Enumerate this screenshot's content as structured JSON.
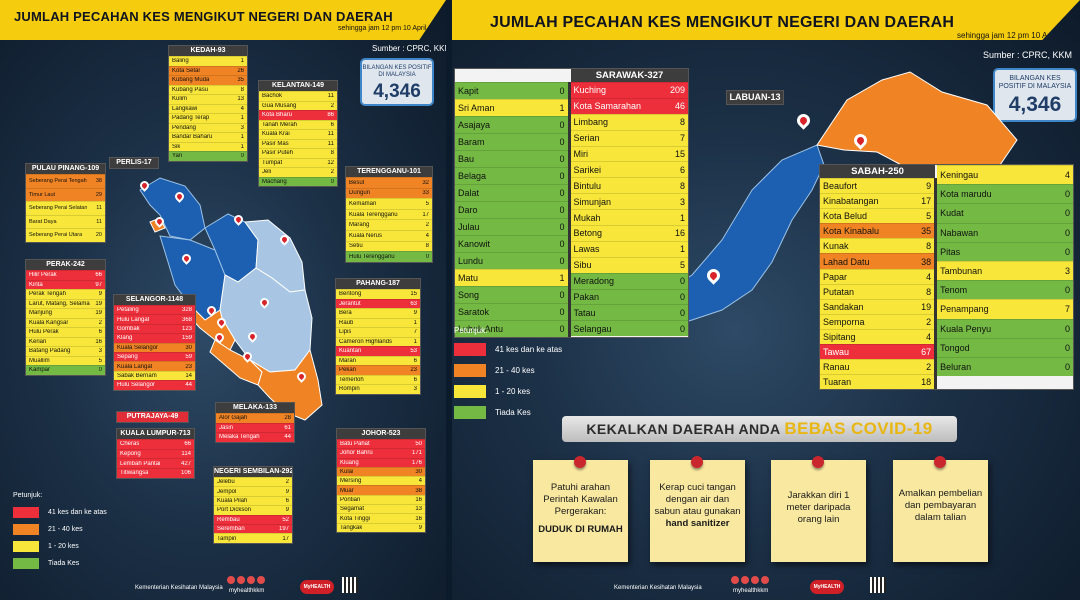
{
  "left": {
    "title": "JUMLAH PECAHAN KES MENGIKUT NEGERI DAN DAERAH",
    "subtitle": "sehingga jam 12 pm 10 April 2020",
    "source": "Sumber : CPRC, KKM",
    "total_label": "BILANGAN KES POSITIF DI MALAYSIA",
    "total": "4,346",
    "legend_title": "Petunjuk:",
    "legend": [
      "41 kes dan ke atas",
      "21 - 40 kes",
      "1 - 20 kes",
      "Tiada Kes"
    ],
    "footer": "Kementerian Kesihatan Malaysia",
    "handle": "myhealthkkm",
    "logo": "MyHEALTH",
    "colors": {
      "red": "#ed2f3b",
      "orange": "#f08324",
      "yellow": "#f8e73a",
      "green": "#73b944",
      "header": "#f6cc0e"
    },
    "states": {
      "kedah": {
        "title": "KEDAH-93",
        "rows": [
          [
            "Baling",
            "1",
            "y"
          ],
          [
            "Kota Setar",
            "26",
            "o"
          ],
          [
            "Kubang Muda",
            "35",
            "o"
          ],
          [
            "Kubang Pasu",
            "8",
            "y"
          ],
          [
            "Kulim",
            "13",
            "y"
          ],
          [
            "Langkawi",
            "4",
            "y"
          ],
          [
            "Padang Terap",
            "1",
            "y"
          ],
          [
            "Pendang",
            "3",
            "y"
          ],
          [
            "Bandar Baharu",
            "1",
            "y"
          ],
          [
            "Sik",
            "1",
            "y"
          ],
          [
            "Yan",
            "0",
            "g"
          ]
        ]
      },
      "kelantan": {
        "title": "KELANTAN-149",
        "rows": [
          [
            "Bachok",
            "11",
            "y"
          ],
          [
            "Gua Musang",
            "2",
            "y"
          ],
          [
            "Kota Bharu",
            "86",
            "r"
          ],
          [
            "Tanah Merah",
            "6",
            "y"
          ],
          [
            "Kuala Krai",
            "11",
            "y"
          ],
          [
            "Pasir Mas",
            "11",
            "y"
          ],
          [
            "Pasir Puteh",
            "8",
            "y"
          ],
          [
            "Tumpat",
            "12",
            "y"
          ],
          [
            "Jeli",
            "2",
            "y"
          ],
          [
            "Machang",
            "0",
            "g"
          ]
        ]
      },
      "penang": {
        "title": "PULAU PINANG-109",
        "rows": [
          [
            "Seberang Perai Tengah",
            "38",
            "o"
          ],
          [
            "Timur Laut",
            "29",
            "o"
          ],
          [
            "Seberang Perai Selatan",
            "11",
            "y"
          ],
          [
            "Barat Daya",
            "11",
            "y"
          ],
          [
            "Seberang Perai Utara",
            "20",
            "y"
          ]
        ]
      },
      "perlis": {
        "title": "PERLIS-17"
      },
      "terengganu": {
        "title": "TERENGGANU-101",
        "rows": [
          [
            "Besut",
            "32",
            "o"
          ],
          [
            "Dungun",
            "33",
            "o"
          ],
          [
            "Kemaman",
            "5",
            "y"
          ],
          [
            "Kuala Terengganu",
            "17",
            "y"
          ],
          [
            "Marang",
            "2",
            "y"
          ],
          [
            "Kuala Nerus",
            "4",
            "y"
          ],
          [
            "Setiu",
            "8",
            "y"
          ],
          [
            "Hulu Terengganu",
            "0",
            "g"
          ]
        ]
      },
      "perak": {
        "title": "PERAK-242",
        "rows": [
          [
            "Hilir Perak",
            "66",
            "r"
          ],
          [
            "Kinta",
            "97",
            "r"
          ],
          [
            "Perak Tengah",
            "9",
            "y"
          ],
          [
            "Larut, Matang, Selama",
            "19",
            "y"
          ],
          [
            "Manjung",
            "19",
            "y"
          ],
          [
            "Kuala Kangsar",
            "2",
            "y"
          ],
          [
            "Hulu Perak",
            "6",
            "y"
          ],
          [
            "Kerian",
            "16",
            "y"
          ],
          [
            "Batang Padang",
            "3",
            "y"
          ],
          [
            "Muallim",
            "5",
            "y"
          ],
          [
            "Kampar",
            "0",
            "g"
          ]
        ]
      },
      "selangor": {
        "title": "SELANGOR-1148",
        "rows": [
          [
            "Petaling",
            "328",
            "r"
          ],
          [
            "Hulu Langat",
            "368",
            "r"
          ],
          [
            "Gombak",
            "123",
            "r"
          ],
          [
            "Klang",
            "159",
            "r"
          ],
          [
            "Kuala Selangor",
            "30",
            "o"
          ],
          [
            "Sepang",
            "59",
            "r"
          ],
          [
            "Kuala Langat",
            "23",
            "o"
          ],
          [
            "Sabak Bernam",
            "14",
            "y"
          ],
          [
            "Hulu Selangor",
            "44",
            "r"
          ]
        ]
      },
      "pahang": {
        "title": "PAHANG-187",
        "rows": [
          [
            "Bentong",
            "15",
            "y"
          ],
          [
            "Jerantut",
            "63",
            "r"
          ],
          [
            "Bera",
            "9",
            "y"
          ],
          [
            "Raub",
            "1",
            "y"
          ],
          [
            "Lipis",
            "7",
            "y"
          ],
          [
            "Cameron Highlands",
            "1",
            "y"
          ],
          [
            "Kuantan",
            "53",
            "r"
          ],
          [
            "Maran",
            "6",
            "y"
          ],
          [
            "Pekan",
            "23",
            "o"
          ],
          [
            "Temerloh",
            "6",
            "y"
          ],
          [
            "Rompin",
            "3",
            "y"
          ]
        ]
      },
      "putrajaya": {
        "title": "PUTRAJAYA-49"
      },
      "melaka": {
        "title": "MELAKA-133",
        "rows": [
          [
            "Alor Gajah",
            "28",
            "o"
          ],
          [
            "Jasin",
            "61",
            "r"
          ],
          [
            "Melaka Tengah",
            "44",
            "r"
          ]
        ]
      },
      "kl": {
        "title": "KUALA LUMPUR-713",
        "rows": [
          [
            "Cheras",
            "66",
            "r"
          ],
          [
            "Kepong",
            "114",
            "r"
          ],
          [
            "Lembah Pantai",
            "427",
            "r"
          ],
          [
            "Titiwangsa",
            "106",
            "r"
          ]
        ]
      },
      "johor": {
        "title": "JOHOR-523",
        "rows": [
          [
            "Batu Pahat",
            "50",
            "r"
          ],
          [
            "Johor Bahru",
            "171",
            "r"
          ],
          [
            "Kluang",
            "176",
            "r"
          ],
          [
            "Kulai",
            "30",
            "o"
          ],
          [
            "Mersing",
            "4",
            "y"
          ],
          [
            "Muar",
            "38",
            "o"
          ],
          [
            "Pontian",
            "16",
            "y"
          ],
          [
            "Segamat",
            "13",
            "y"
          ],
          [
            "Kota Tinggi",
            "16",
            "y"
          ],
          [
            "Tangkak",
            "9",
            "y"
          ]
        ]
      },
      "ns": {
        "title": "NEGERI SEMBILAN-292",
        "rows": [
          [
            "Jelebu",
            "2",
            "y"
          ],
          [
            "Jempol",
            "9",
            "y"
          ],
          [
            "Kuala Pilah",
            "6",
            "y"
          ],
          [
            "Port Dickson",
            "9",
            "y"
          ],
          [
            "Rembau",
            "52",
            "r"
          ],
          [
            "Seremban",
            "197",
            "r"
          ],
          [
            "Tampin",
            "17",
            "y"
          ]
        ]
      }
    }
  },
  "right": {
    "title": "JUMLAH PECAHAN KES MENGIKUT NEGERI DAN DAERAH",
    "subtitle": "sehingga jam 12 pm 10 April 2020",
    "source": "Sumber : CPRC, KKM",
    "total_label": "BILANGAN KES POSITIF DI MALAYSIA",
    "total": "4,346",
    "legend_title": "Petunjuk:",
    "legend": [
      "41 kes dan ke atas",
      "21 - 40 kes",
      "1 - 20 kes",
      "Tiada Kes"
    ],
    "labuan": "LABUAN-13",
    "footer": "Kementerian Kesihatan Malaysia",
    "handle": "myhealthkkm",
    "logo": "MyHEALTH",
    "sarawak": {
      "title": "SARAWAK-327",
      "col1": [
        [
          "Kapit",
          "0",
          "g"
        ],
        [
          "Sri Aman",
          "1",
          "y"
        ],
        [
          "Asajaya",
          "0",
          "g"
        ],
        [
          "Baram",
          "0",
          "g"
        ],
        [
          "Bau",
          "0",
          "g"
        ],
        [
          "Belaga",
          "0",
          "g"
        ],
        [
          "Dalat",
          "0",
          "g"
        ],
        [
          "Daro",
          "0",
          "g"
        ],
        [
          "Julau",
          "0",
          "g"
        ],
        [
          "Kanowit",
          "0",
          "g"
        ],
        [
          "Lundu",
          "0",
          "g"
        ],
        [
          "Matu",
          "1",
          "y"
        ],
        [
          "Song",
          "0",
          "g"
        ],
        [
          "Saratok",
          "0",
          "g"
        ],
        [
          "Lubok Antu",
          "0",
          "g"
        ]
      ],
      "col2": [
        [
          "Kuching",
          "209",
          "r"
        ],
        [
          "Kota Samarahan",
          "46",
          "r"
        ],
        [
          "Limbang",
          "8",
          "y"
        ],
        [
          "Serian",
          "7",
          "y"
        ],
        [
          "Miri",
          "15",
          "y"
        ],
        [
          "Sarikei",
          "6",
          "y"
        ],
        [
          "Bintulu",
          "8",
          "y"
        ],
        [
          "Simunjan",
          "3",
          "y"
        ],
        [
          "Mukah",
          "1",
          "y"
        ],
        [
          "Betong",
          "16",
          "y"
        ],
        [
          "Lawas",
          "1",
          "y"
        ],
        [
          "Sibu",
          "5",
          "y"
        ],
        [
          "Meradong",
          "0",
          "g"
        ],
        [
          "Pakan",
          "0",
          "g"
        ],
        [
          "Tatau",
          "0",
          "g"
        ],
        [
          "Selangau",
          "0",
          "g"
        ]
      ]
    },
    "sabah": {
      "title": "SABAH-250",
      "col1": [
        [
          "Beaufort",
          "9",
          "y"
        ],
        [
          "Kinabatangan",
          "17",
          "y"
        ],
        [
          "Kota Belud",
          "5",
          "y"
        ],
        [
          "Kota Kinabalu",
          "35",
          "o"
        ],
        [
          "Kunak",
          "8",
          "y"
        ],
        [
          "Lahad Datu",
          "38",
          "o"
        ],
        [
          "Papar",
          "4",
          "y"
        ],
        [
          "Putatan",
          "8",
          "y"
        ],
        [
          "Sandakan",
          "19",
          "y"
        ],
        [
          "Semporna",
          "2",
          "y"
        ],
        [
          "Sipitang",
          "4",
          "y"
        ],
        [
          "Tawau",
          "67",
          "r"
        ],
        [
          "Ranau",
          "2",
          "y"
        ],
        [
          "Tuaran",
          "18",
          "y"
        ]
      ],
      "col2": [
        [
          "Keningau",
          "4",
          "y"
        ],
        [
          "Kota marudu",
          "0",
          "g"
        ],
        [
          "Kudat",
          "0",
          "g"
        ],
        [
          "Nabawan",
          "0",
          "g"
        ],
        [
          "Pitas",
          "0",
          "g"
        ],
        [
          "Tambunan",
          "3",
          "y"
        ],
        [
          "Tenom",
          "0",
          "g"
        ],
        [
          "Penampang",
          "7",
          "y"
        ],
        [
          "Kuala Penyu",
          "0",
          "g"
        ],
        [
          "Tongod",
          "0",
          "g"
        ],
        [
          "Beluran",
          "0",
          "g"
        ]
      ]
    },
    "banner": {
      "pre": "KEKALKAN DAERAH ANDA",
      "highlight": "BEBAS COVID-19"
    },
    "notes": [
      {
        "text": "Patuhi arahan Perintah Kawalan Pergerakan:",
        "bold": "DUDUK DI RUMAH"
      },
      {
        "text": "Kerap cuci tangan dengan air dan sabun atau gunakan",
        "bold": "hand sanitizer"
      },
      {
        "text": "Jarakkan diri 1 meter daripada orang lain",
        "bold": ""
      },
      {
        "text": "Amalkan pembelian dan pembayaran dalam talian",
        "bold": ""
      }
    ]
  }
}
